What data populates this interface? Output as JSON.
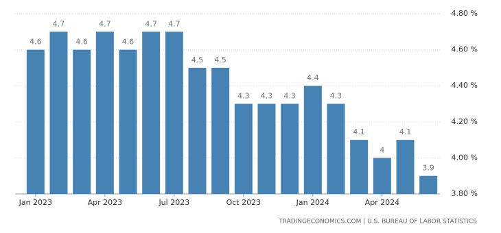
{
  "chart_data": {
    "type": "bar",
    "categories": [
      "Jan 2023",
      null,
      null,
      "Apr 2023",
      null,
      null,
      "Jul 2023",
      null,
      null,
      "Oct 2023",
      null,
      null,
      "Jan 2024",
      null,
      null,
      "Apr 2024",
      null,
      null
    ],
    "values": [
      4.6,
      4.7,
      4.6,
      4.7,
      4.6,
      4.7,
      4.7,
      4.5,
      4.5,
      4.3,
      4.3,
      4.3,
      4.4,
      4.3,
      4.1,
      4,
      4.1,
      3.9
    ],
    "color": "#4682b4",
    "ylim": [
      3.8,
      4.8
    ],
    "yticks": [
      {
        "value": 3.8,
        "label": "3.80 %"
      },
      {
        "value": 4.0,
        "label": "4.00 %"
      },
      {
        "value": 4.2,
        "label": "4.20 %"
      },
      {
        "value": 4.4,
        "label": "4.40 %"
      },
      {
        "value": 4.6,
        "label": "4.60 %"
      },
      {
        "value": 4.8,
        "label": "4.80 %"
      }
    ],
    "grid": true,
    "source": "TRADINGECONOMICS.COM | U.S. BUREAU OF LABOR STATISTICS"
  }
}
